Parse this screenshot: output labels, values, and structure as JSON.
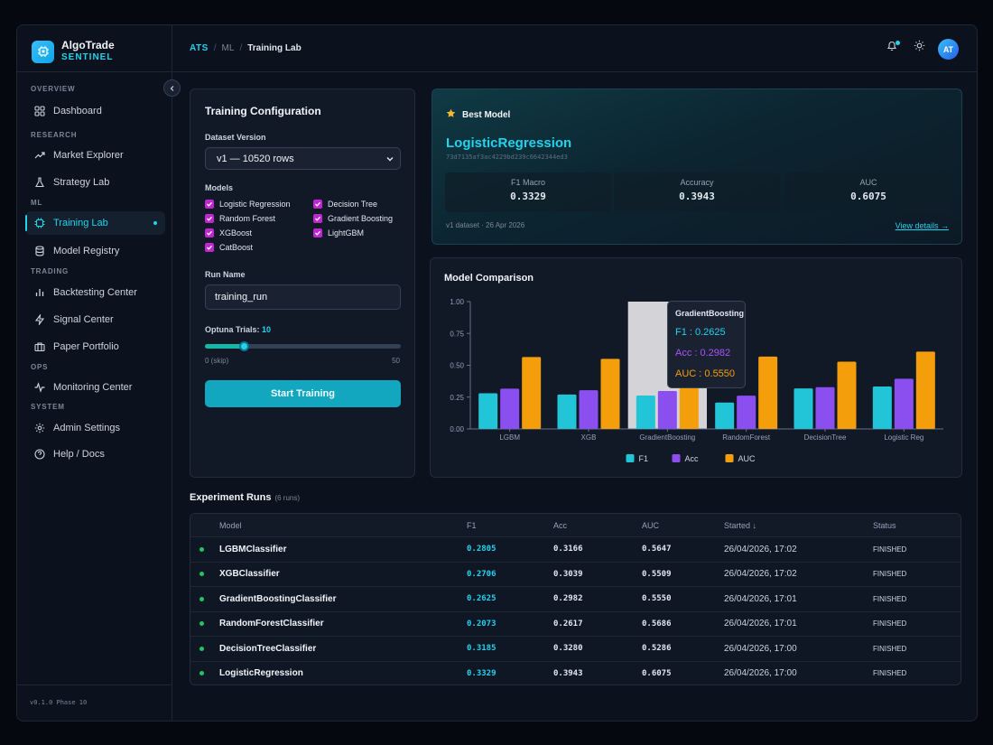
{
  "brand": {
    "name": "AlgoTrade",
    "sub": "SENTINEL"
  },
  "sidebar": {
    "sections": {
      "overview": "OVERVIEW",
      "research": "RESEARCH",
      "ml": "ML",
      "trading": "TRADING",
      "ops": "OPS",
      "system": "SYSTEM"
    },
    "items": {
      "dashboard": "Dashboard",
      "market_explorer": "Market Explorer",
      "strategy_lab": "Strategy Lab",
      "training_lab": "Training Lab",
      "model_registry": "Model Registry",
      "backtesting_center": "Backtesting Center",
      "signal_center": "Signal Center",
      "paper_portfolio": "Paper Portfolio",
      "monitoring_center": "Monitoring Center",
      "admin_settings": "Admin Settings",
      "help_docs": "Help / Docs"
    },
    "version": "v0.1.0 Phase 10"
  },
  "header": {
    "breadcrumb": {
      "root": "ATS",
      "mid": "ML",
      "current": "Training Lab"
    },
    "avatar": "AT"
  },
  "config": {
    "title": "Training Configuration",
    "dataset_label": "Dataset Version",
    "dataset_value": "v1 — 10520 rows",
    "models_label": "Models",
    "models": [
      "Logistic Regression",
      "Decision Tree",
      "Random Forest",
      "Gradient Boosting",
      "XGBoost",
      "LightGBM",
      "CatBoost"
    ],
    "run_name_label": "Run Name",
    "run_name_value": "training_run",
    "trials_label": "Optuna Trials:",
    "trials_value": "10",
    "trials_fraction": 0.2,
    "slider_min": "0 (skip)",
    "slider_max": "50",
    "start_button": "Start Training"
  },
  "best_model": {
    "label": "Best Model",
    "name": "LogisticRegression",
    "hash": "73d7135af3ac4229bd239c6642344ed3",
    "metrics": [
      {
        "label": "F1 Macro",
        "value": "0.3329"
      },
      {
        "label": "Accuracy",
        "value": "0.3943"
      },
      {
        "label": "AUC",
        "value": "0.6075"
      }
    ],
    "footer": "v1 dataset · 26 Apr 2026",
    "link": "View details →"
  },
  "chart_title": "Model Comparison",
  "chart_data": {
    "type": "bar",
    "categories": [
      "LGBM",
      "XGB",
      "GradientBoosting",
      "RandomForest",
      "DecisionTree",
      "Logistic Reg"
    ],
    "series": [
      {
        "name": "F1",
        "values": [
          0.2805,
          0.2706,
          0.2625,
          0.2073,
          0.3185,
          0.3329
        ],
        "color": "#22c4d8"
      },
      {
        "name": "Acc",
        "values": [
          0.3166,
          0.3039,
          0.2982,
          0.2617,
          0.328,
          0.3943
        ],
        "color": "#8b4ff0"
      },
      {
        "name": "AUC",
        "values": [
          0.5647,
          0.5509,
          0.555,
          0.5686,
          0.5286,
          0.6075
        ],
        "color": "#f59e0b"
      }
    ],
    "y_ticks": [
      "0.00",
      "0.25",
      "0.50",
      "0.75",
      "1.00"
    ],
    "ylim": [
      0,
      1
    ],
    "legend_position": "bottom",
    "hover_index": 2,
    "tooltip": {
      "title": "GradientBoosting",
      "lines": [
        {
          "text": "F1 : 0.2625",
          "color": "#22d3ee"
        },
        {
          "text": "Acc : 0.2982",
          "color": "#a855f7"
        },
        {
          "text": "AUC : 0.5550",
          "color": "#f59e0b"
        }
      ]
    }
  },
  "experiments": {
    "title": "Experiment Runs",
    "count": "(6 runs)",
    "headers": {
      "model": "Model",
      "f1": "F1",
      "acc": "Acc",
      "auc": "AUC",
      "started": "Started ↓",
      "status": "Status"
    },
    "rows": [
      {
        "model": "LGBMClassifier",
        "f1": "0.2805",
        "acc": "0.3166",
        "auc": "0.5647",
        "started": "26/04/2026, 17:02",
        "status": "FINISHED"
      },
      {
        "model": "XGBClassifier",
        "f1": "0.2706",
        "acc": "0.3039",
        "auc": "0.5509",
        "started": "26/04/2026, 17:02",
        "status": "FINISHED"
      },
      {
        "model": "GradientBoostingClassifier",
        "f1": "0.2625",
        "acc": "0.2982",
        "auc": "0.5550",
        "started": "26/04/2026, 17:01",
        "status": "FINISHED"
      },
      {
        "model": "RandomForestClassifier",
        "f1": "0.2073",
        "acc": "0.2617",
        "auc": "0.5686",
        "started": "26/04/2026, 17:01",
        "status": "FINISHED"
      },
      {
        "model": "DecisionTreeClassifier",
        "f1": "0.3185",
        "acc": "0.3280",
        "auc": "0.5286",
        "started": "26/04/2026, 17:00",
        "status": "FINISHED"
      },
      {
        "model": "LogisticRegression",
        "f1": "0.3329",
        "acc": "0.3943",
        "auc": "0.6075",
        "started": "26/04/2026, 17:00",
        "status": "FINISHED"
      }
    ]
  }
}
